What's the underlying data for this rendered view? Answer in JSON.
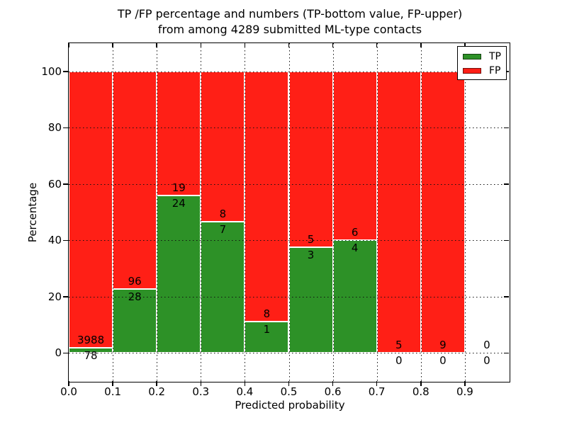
{
  "chart_data": {
    "type": "bar",
    "stacked": true,
    "title_line1": "TP /FP percentage and numbers (TP-bottom value, FP-upper)",
    "title_line2": "from among 4289 submitted ML-type contacts",
    "xlabel": "Predicted probability",
    "ylabel": "Percentage",
    "xlim": [
      0.0,
      1.0
    ],
    "ylim": [
      -10,
      110
    ],
    "x_tick_values": [
      0.0,
      0.1,
      0.2,
      0.3,
      0.4,
      0.5,
      0.6,
      0.7,
      0.8,
      0.9
    ],
    "x_tick_labels": [
      "0.0",
      "0.1",
      "0.2",
      "0.3",
      "0.4",
      "0.5",
      "0.6",
      "0.7",
      "0.8",
      "0.9"
    ],
    "y_tick_values": [
      0,
      20,
      40,
      60,
      80,
      100
    ],
    "y_tick_labels": [
      "0",
      "20",
      "40",
      "60",
      "80",
      "100"
    ],
    "grid": "dotted, drawn above bars",
    "legend_position": "upper right",
    "colors": {
      "tp": "#2d9127",
      "fp": "#ff1f16",
      "bar_edge": "#ffffff"
    },
    "legend": [
      {
        "label": "TP",
        "color": "#2d9127"
      },
      {
        "label": "FP",
        "color": "#ff1f16"
      }
    ],
    "bins": [
      {
        "range": [
          0.0,
          0.1
        ],
        "tp": 78,
        "fp": 3988,
        "tp_pct": 1.92
      },
      {
        "range": [
          0.1,
          0.2
        ],
        "tp": 28,
        "fp": 96,
        "tp_pct": 22.58
      },
      {
        "range": [
          0.2,
          0.3
        ],
        "tp": 24,
        "fp": 19,
        "tp_pct": 55.81
      },
      {
        "range": [
          0.3,
          0.4
        ],
        "tp": 7,
        "fp": 8,
        "tp_pct": 46.67
      },
      {
        "range": [
          0.4,
          0.5
        ],
        "tp": 1,
        "fp": 8,
        "tp_pct": 11.11
      },
      {
        "range": [
          0.5,
          0.6
        ],
        "tp": 3,
        "fp": 5,
        "tp_pct": 37.5
      },
      {
        "range": [
          0.6,
          0.7
        ],
        "tp": 4,
        "fp": 6,
        "tp_pct": 40.0
      },
      {
        "range": [
          0.7,
          0.8
        ],
        "tp": 0,
        "fp": 5,
        "tp_pct": 0.0
      },
      {
        "range": [
          0.8,
          0.9
        ],
        "tp": 0,
        "fp": 9,
        "tp_pct": 0.0
      },
      {
        "range": [
          0.9,
          1.0
        ],
        "tp": 0,
        "fp": 0,
        "tp_pct": null
      }
    ]
  }
}
